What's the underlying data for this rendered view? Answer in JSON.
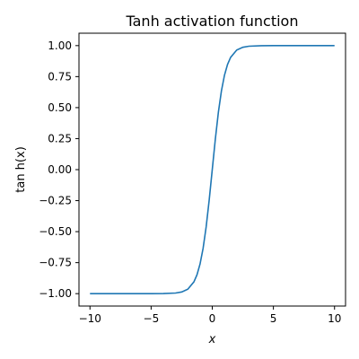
{
  "chart_data": {
    "type": "line",
    "title": "Tanh activation function",
    "xlabel": "x",
    "ylabel": "tan h(x)",
    "xlim": [
      -10.9,
      10.9
    ],
    "ylim": [
      -1.1,
      1.1
    ],
    "xticks": [
      -10,
      -5,
      0,
      5,
      10
    ],
    "xtick_labels": [
      "−10",
      "−5",
      "0",
      "5",
      "10"
    ],
    "yticks": [
      -1.0,
      -0.75,
      -0.5,
      -0.25,
      0.0,
      0.25,
      0.5,
      0.75,
      1.0
    ],
    "ytick_labels": [
      "−1.00",
      "−0.75",
      "−0.50",
      "−0.25",
      "0.00",
      "0.25",
      "0.50",
      "0.75",
      "1.00"
    ],
    "grid": false,
    "legend": "none",
    "series": [
      {
        "color": "#1f77b4",
        "x": [
          -10,
          -5,
          -4,
          -3,
          -2.5,
          -2,
          -1.5,
          -1.25,
          -1,
          -0.75,
          -0.5,
          -0.25,
          0,
          0.25,
          0.5,
          0.75,
          1,
          1.25,
          1.5,
          2,
          2.5,
          3,
          4,
          5,
          10
        ],
        "y": [
          -1.0,
          -0.9999,
          -0.9993,
          -0.9951,
          -0.9866,
          -0.964,
          -0.9051,
          -0.8483,
          -0.7616,
          -0.6351,
          -0.4621,
          -0.2449,
          0.0,
          0.2449,
          0.4621,
          0.6351,
          0.7616,
          0.8483,
          0.9051,
          0.964,
          0.9866,
          0.9951,
          0.9993,
          0.9999,
          1.0
        ]
      }
    ]
  }
}
